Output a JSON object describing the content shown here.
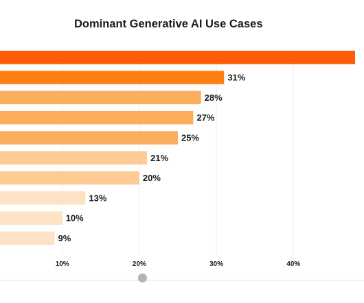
{
  "title": "Dominant Generative AI Use Cases",
  "chart_data": {
    "type": "bar",
    "orientation": "horizontal",
    "title": "Dominant Generative AI Use Cases",
    "xlim": [
      0,
      48
    ],
    "xticks": [
      10,
      20,
      30,
      40
    ],
    "xtick_labels": [
      "10%",
      "20%",
      "30%",
      "40%"
    ],
    "grid": true,
    "values": [
      48,
      31,
      28,
      27,
      25,
      21,
      20,
      13,
      10,
      9
    ],
    "value_labels": [
      "",
      "31%",
      "28%",
      "27%",
      "25%",
      "21%",
      "20%",
      "13%",
      "10%",
      "9%"
    ],
    "colors": [
      "#ff5c0a",
      "#ff7e14",
      "#fcae5c",
      "#fcae5c",
      "#fcae5c",
      "#fdcb93",
      "#fdcb93",
      "#fee2c4",
      "#fee2c4",
      "#fee2c4"
    ]
  }
}
